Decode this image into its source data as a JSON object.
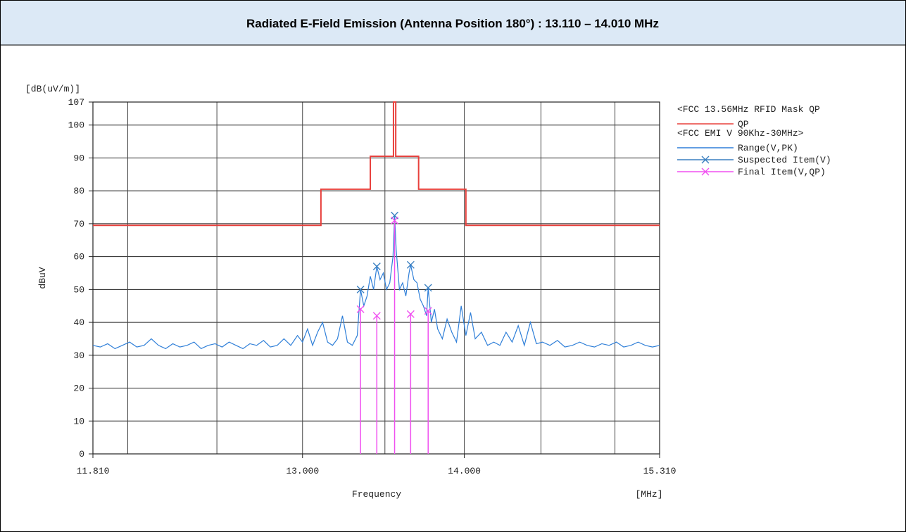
{
  "chart_data": {
    "type": "line",
    "title": "Radiated E-Field Emission (Antenna Position 180°) : 13.110 – 14.010 MHz",
    "y_unit_label": "[dB(uV/m)]",
    "ylabel": "dBuV",
    "xlabel": "Frequency",
    "x_unit_label": "[MHz]",
    "xscale": "log",
    "xlim": [
      11.81,
      15.31
    ],
    "xticks": [
      {
        "value": 11.81,
        "label": "11.810"
      },
      {
        "value": 13,
        "label": "13.000"
      },
      {
        "value": 14,
        "label": "14.000"
      },
      {
        "value": 15.31,
        "label": "15.310"
      }
    ],
    "xgrid": [
      12,
      12.5,
      13,
      13.5,
      14,
      14.5,
      15
    ],
    "ylim": [
      0,
      107
    ],
    "yticks": [
      0,
      10,
      20,
      30,
      40,
      50,
      60,
      70,
      80,
      90,
      100,
      107
    ],
    "grid": true,
    "legend_headers": [
      "<FCC 13.56MHz RFID Mask QP",
      "<FCC EMI V 90Khz-30MHz>"
    ],
    "series": [
      {
        "name": "QP",
        "color": "#e8403c",
        "style": "line",
        "x": [
          11.81,
          13.11,
          13.11,
          13.41,
          13.41,
          13.553,
          13.553,
          13.567,
          13.567,
          13.71,
          13.71,
          14.01,
          14.01,
          15.31
        ],
        "values": [
          69.5,
          69.5,
          80.5,
          80.5,
          90.5,
          90.5,
          107,
          107,
          90.5,
          90.5,
          80.5,
          80.5,
          69.5,
          69.5
        ]
      },
      {
        "name": "Range(V,PK)",
        "color": "#2f7fd8",
        "style": "line",
        "x": [
          11.81,
          11.85,
          11.89,
          11.93,
          11.97,
          12.01,
          12.05,
          12.09,
          12.13,
          12.17,
          12.21,
          12.25,
          12.29,
          12.33,
          12.37,
          12.41,
          12.45,
          12.49,
          12.53,
          12.57,
          12.61,
          12.65,
          12.69,
          12.73,
          12.77,
          12.81,
          12.85,
          12.89,
          12.93,
          12.97,
          13.0,
          13.03,
          13.06,
          13.09,
          13.12,
          13.15,
          13.18,
          13.21,
          13.24,
          13.27,
          13.3,
          13.33,
          13.35,
          13.37,
          13.39,
          13.41,
          13.43,
          13.45,
          13.47,
          13.49,
          13.51,
          13.53,
          13.55,
          13.56,
          13.57,
          13.59,
          13.61,
          13.63,
          13.65,
          13.66,
          13.68,
          13.7,
          13.72,
          13.74,
          13.76,
          13.77,
          13.79,
          13.81,
          13.83,
          13.86,
          13.89,
          13.92,
          13.95,
          13.98,
          14.01,
          14.04,
          14.07,
          14.11,
          14.15,
          14.19,
          14.23,
          14.27,
          14.31,
          14.35,
          14.39,
          14.43,
          14.47,
          14.51,
          14.56,
          14.61,
          14.66,
          14.71,
          14.76,
          14.81,
          14.86,
          14.91,
          14.96,
          15.01,
          15.06,
          15.11,
          15.16,
          15.21,
          15.26,
          15.31
        ],
        "values": [
          33,
          32.5,
          33.5,
          32,
          33,
          34,
          32.5,
          33,
          35,
          33,
          32,
          33.5,
          32.5,
          33,
          34,
          32,
          33,
          33.5,
          32.5,
          34,
          33,
          32,
          33.5,
          33,
          34.5,
          32.5,
          33,
          35,
          33,
          36,
          34,
          38,
          33,
          37,
          40,
          34,
          33,
          35,
          42,
          34,
          33,
          36,
          50,
          45,
          48,
          54,
          50,
          57,
          53,
          55,
          50,
          52,
          60,
          72.5,
          62,
          50,
          52,
          48,
          55,
          57.5,
          53,
          52,
          47,
          45,
          42,
          50.5,
          40,
          44,
          38,
          35,
          41,
          37,
          34,
          45,
          36,
          43,
          35,
          37,
          33,
          34,
          33,
          37,
          34,
          39,
          33,
          40,
          33.5,
          34,
          33,
          34.5,
          32.5,
          33,
          34,
          33,
          32.5,
          33.5,
          33,
          34,
          32.5,
          33,
          34,
          33,
          32.5,
          33
        ]
      },
      {
        "name": "Suspected Item(V)",
        "color": "#3a7fc0",
        "style": "marker",
        "x": [
          13.35,
          13.45,
          13.56,
          13.66,
          13.77
        ],
        "values": [
          50,
          57,
          72.5,
          57.5,
          50.5
        ]
      },
      {
        "name": "Final Item(V,QP)",
        "color": "#f050f0",
        "style": "stem",
        "x": [
          13.35,
          13.45,
          13.56,
          13.66,
          13.77
        ],
        "values": [
          44,
          42,
          71,
          42.5,
          43.5
        ]
      }
    ]
  }
}
